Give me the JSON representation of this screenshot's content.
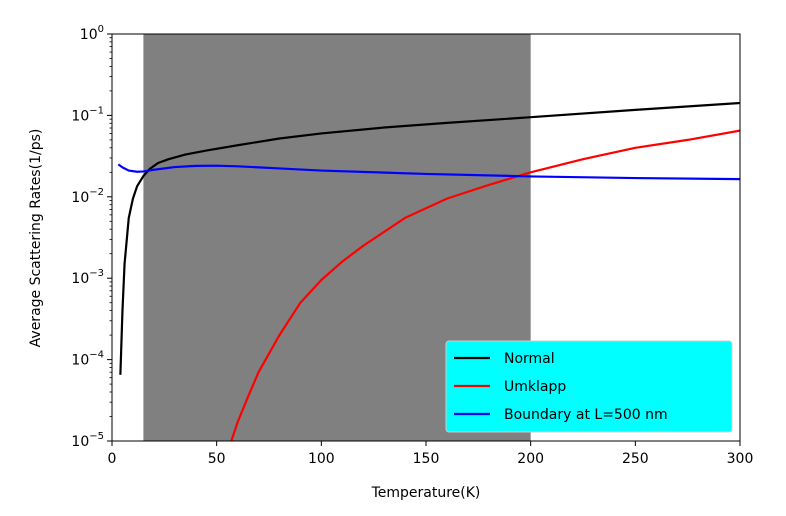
{
  "chart_data": {
    "type": "line",
    "xlabel": "Temperature(K)",
    "ylabel": "Average Scattering Rates(1/ps)",
    "yscale": "log",
    "xlim": [
      0,
      300
    ],
    "ylim": [
      1e-05,
      1
    ],
    "x_ticks": [
      0,
      50,
      100,
      150,
      200,
      250,
      300
    ],
    "x_tick_labels": [
      "0",
      "50",
      "100",
      "150",
      "200",
      "250",
      "300"
    ],
    "y_ticks": [
      1e-05,
      0.0001,
      0.001,
      0.01,
      0.1,
      1
    ],
    "y_tick_labels": [
      {
        "base": "10",
        "exp": "−5"
      },
      {
        "base": "10",
        "exp": "−4"
      },
      {
        "base": "10",
        "exp": "−3"
      },
      {
        "base": "10",
        "exp": "−2"
      },
      {
        "base": "10",
        "exp": "−1"
      },
      {
        "base": "10",
        "exp": "0"
      }
    ],
    "shaded_region": {
      "x_start": 15,
      "x_end": 200,
      "color": "#808080"
    },
    "legend": {
      "position": "lower-right",
      "background": "#00ffff"
    },
    "series": [
      {
        "name": "Normal",
        "color": "#000000",
        "x": [
          4,
          5,
          6,
          8,
          10,
          12,
          15,
          18,
          22,
          27,
          35,
          45,
          60,
          80,
          100,
          130,
          160,
          200,
          250,
          300
        ],
        "y": [
          6.5e-05,
          0.0004,
          0.0015,
          0.0055,
          0.0095,
          0.0135,
          0.018,
          0.022,
          0.026,
          0.029,
          0.033,
          0.037,
          0.043,
          0.052,
          0.06,
          0.071,
          0.081,
          0.095,
          0.117,
          0.142
        ]
      },
      {
        "name": "Umklapp",
        "color": "#ff0000",
        "x": [
          57,
          60,
          65,
          70,
          80,
          90,
          100,
          110,
          120,
          140,
          160,
          180,
          200,
          225,
          250,
          275,
          300
        ],
        "y": [
          1e-05,
          1.7e-05,
          3.5e-05,
          7e-05,
          0.0002,
          0.0005,
          0.00095,
          0.0016,
          0.0025,
          0.0055,
          0.0095,
          0.014,
          0.02,
          0.029,
          0.04,
          0.05,
          0.065
        ]
      },
      {
        "name": "Boundary at L=500 nm",
        "color": "#0000ff",
        "x": [
          3,
          5,
          8,
          12,
          15,
          20,
          30,
          40,
          50,
          60,
          80,
          100,
          150,
          200,
          250,
          300
        ],
        "y": [
          0.025,
          0.023,
          0.021,
          0.0203,
          0.0205,
          0.0215,
          0.0232,
          0.024,
          0.0241,
          0.0237,
          0.0223,
          0.021,
          0.0191,
          0.0178,
          0.017,
          0.0165
        ]
      }
    ]
  }
}
